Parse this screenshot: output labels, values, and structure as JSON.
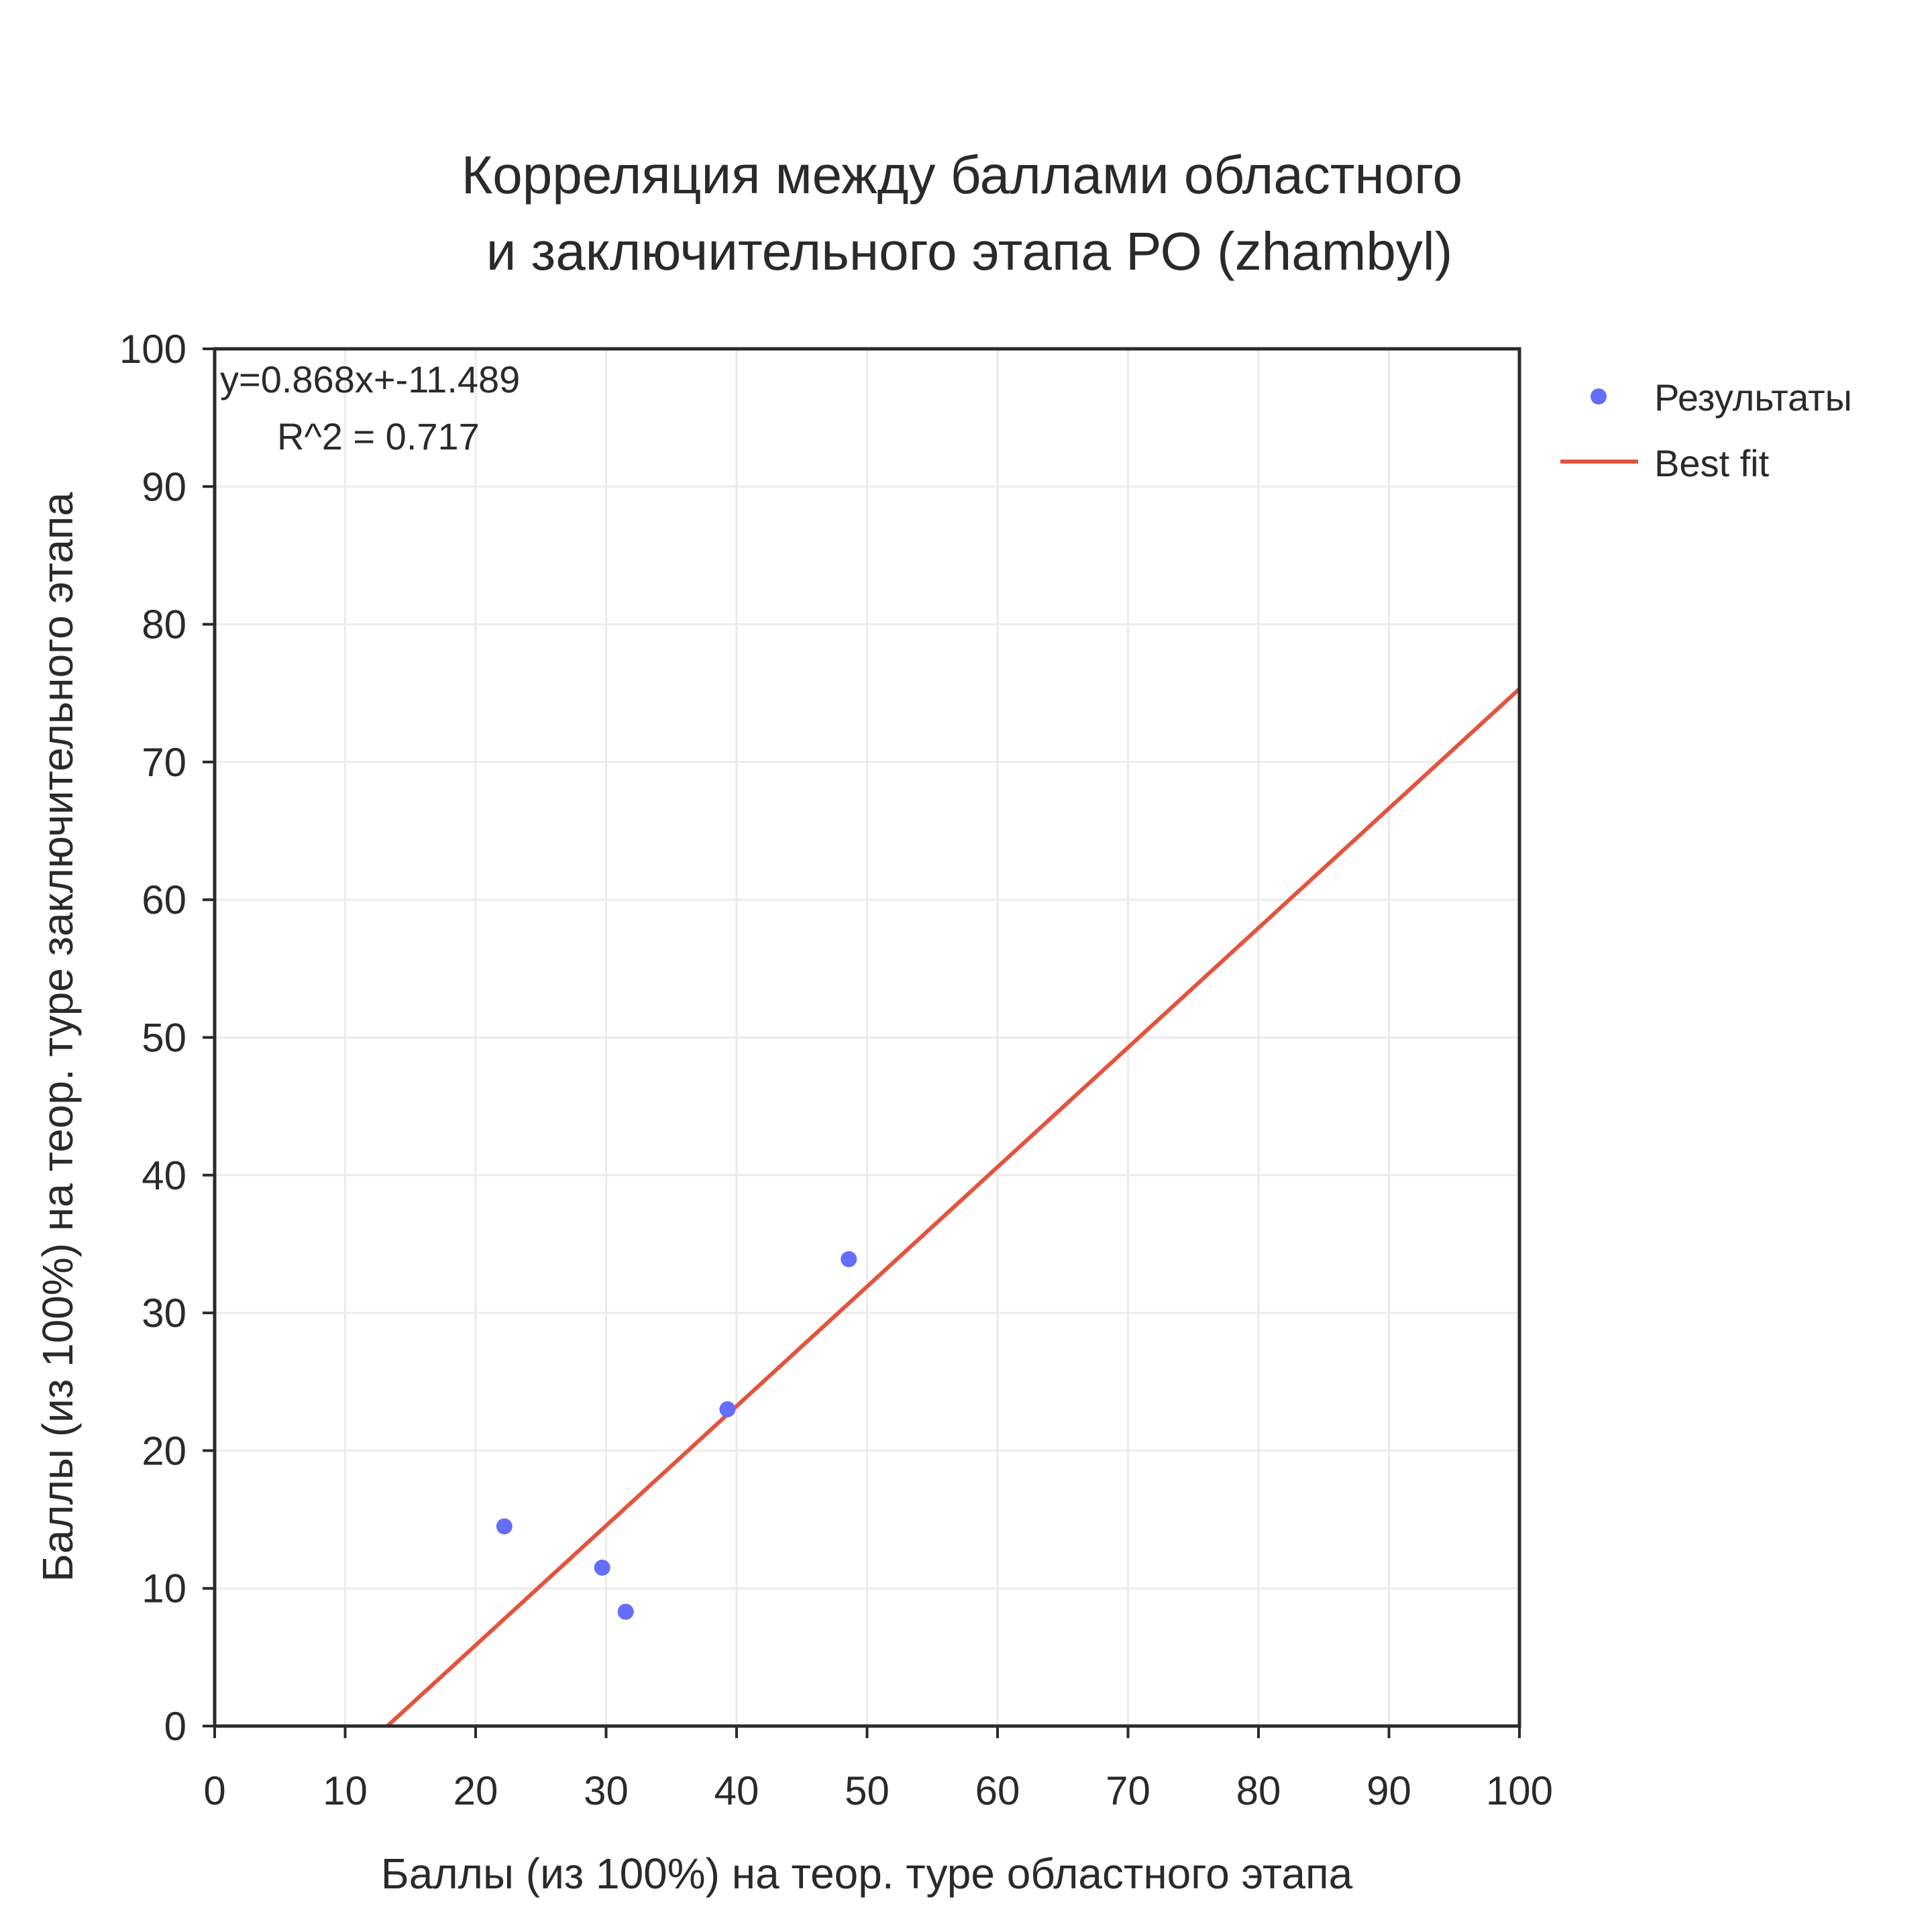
{
  "chart_data": {
    "type": "scatter",
    "title_lines": [
      "Корреляция между баллами областного",
      "и заключительного этапа РО (zhambyl)"
    ],
    "xlabel": "Баллы (из 100%) на теор. туре областного этапа",
    "ylabel": "Баллы (из 100%) на теор. туре заключительного этапа",
    "xlim": [
      0,
      100
    ],
    "ylim": [
      0,
      100
    ],
    "xticks": [
      0,
      10,
      20,
      30,
      40,
      50,
      60,
      70,
      80,
      90,
      100
    ],
    "yticks": [
      0,
      10,
      20,
      30,
      40,
      50,
      60,
      70,
      80,
      90,
      100
    ],
    "grid": true,
    "legend_position": "outside-top-right",
    "series": [
      {
        "name": "Результаты",
        "kind": "scatter",
        "color": "#636efa",
        "x": [
          22.2,
          29.7,
          31.5,
          39.3,
          48.6
        ],
        "y": [
          14.5,
          11.5,
          8.3,
          23.0,
          33.9
        ]
      },
      {
        "name": "Best fit",
        "kind": "line",
        "color": "#e5533d",
        "slope": 0.868,
        "intercept": -11.489
      }
    ],
    "annotations": {
      "equation": "y=0.868x+-11.489",
      "r2": "R^2 = 0.717"
    }
  }
}
